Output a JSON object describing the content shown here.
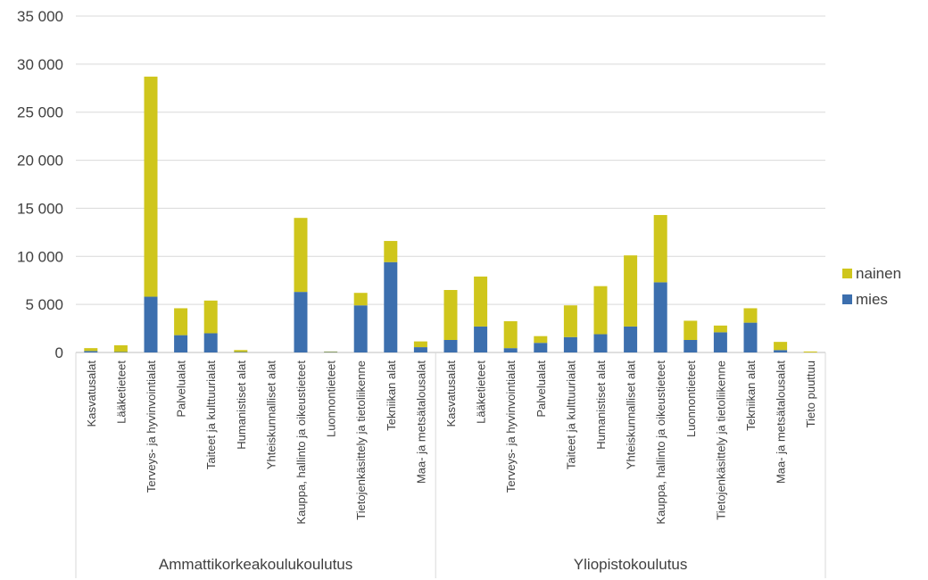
{
  "chart_data": {
    "type": "bar",
    "stacked": true,
    "groups": [
      {
        "label": "Ammattikorkeakoulukoulutus",
        "categories": [
          "Kasvatusalat",
          "Lääketieteet",
          "Terveys- ja hyvinvointialat",
          "Palvelualat",
          "Taiteet ja kulttuurialat",
          "Humanistiset alat",
          "Yhteiskunnalliset alat",
          "Kauppa, hallinto ja oikeustieteet",
          "Luonnontieteet",
          "Tietojenkäsittely ja tietoliikenne",
          "Tekniikan alat",
          "Maa- ja metsätalousalat"
        ]
      },
      {
        "label": "Yliopistokoulutus",
        "categories": [
          "Kasvatusalat",
          "Lääketieteet",
          "Terveys- ja hyvinvointialat",
          "Palvelualat",
          "Taiteet ja kulttuurialat",
          "Humanistiset alat",
          "Yhteiskunnalliset alat",
          "Kauppa, hallinto ja oikeustieteet",
          "Luonnontieteet",
          "Tietojenkäsittely ja tietoliikenne",
          "Tekniikan alat",
          "Maa- ja metsätalousalat",
          "Tieto puuttuu"
        ]
      }
    ],
    "series": [
      {
        "name": "mies",
        "color": "#3c6fae",
        "values": [
          150,
          50,
          5800,
          1800,
          2000,
          50,
          0,
          6300,
          50,
          4900,
          9400,
          550,
          1300,
          2700,
          450,
          1000,
          1600,
          1900,
          2700,
          7300,
          1300,
          2100,
          3100,
          250,
          0
        ]
      },
      {
        "name": "nainen",
        "color": "#cfc61c",
        "values": [
          300,
          700,
          22900,
          2800,
          3400,
          200,
          0,
          7700,
          50,
          1300,
          2200,
          600,
          5200,
          5200,
          2800,
          700,
          3300,
          5000,
          7400,
          7000,
          2000,
          700,
          1500,
          850,
          100
        ]
      }
    ],
    "yticks": [
      "0",
      "5 000",
      "10 000",
      "15 000",
      "20 000",
      "25 000",
      "30 000",
      "35 000"
    ],
    "ylim": [
      0,
      35000
    ],
    "grid": true,
    "legend": {
      "position": "right",
      "order": [
        "nainen",
        "mies"
      ]
    },
    "title": "",
    "xlabel": "",
    "ylabel": ""
  }
}
